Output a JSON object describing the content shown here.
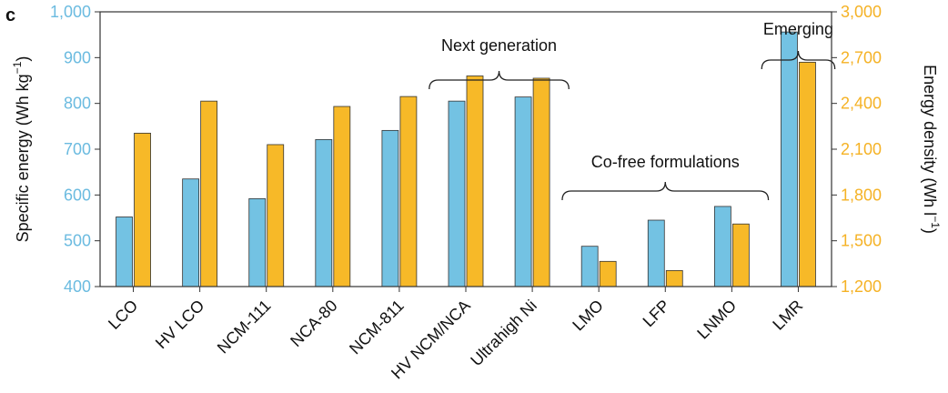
{
  "panel_label": "c",
  "chart_data": {
    "type": "bar",
    "categories": [
      "LCO",
      "HV LCO",
      "NCM-111",
      "NCA-80",
      "NCM-811",
      "HV NCM/NCA",
      "Ultrahigh Ni",
      "LMO",
      "LFP",
      "LNMO",
      "LMR"
    ],
    "series": [
      {
        "color": "#73c2e3",
        "axis": "left",
        "values": [
          552,
          635,
          592,
          721,
          741,
          805,
          814,
          488,
          545,
          575,
          956
        ]
      },
      {
        "color": "#f7b928",
        "axis": "right",
        "values": [
          2205,
          2415,
          2130,
          2380,
          2445,
          2580,
          2565,
          1365,
          1305,
          1610,
          2670
        ]
      }
    ],
    "ylabel_left_parts": [
      "Specific energy (Wh kg",
      "−1",
      ")"
    ],
    "ylabel_right_parts": [
      "Energy density (Wh l",
      "−1",
      ")"
    ],
    "ylim_left": [
      400,
      1000
    ],
    "ylim_right": [
      1200,
      3000
    ],
    "yticks_left": [
      "400",
      "500",
      "600",
      "700",
      "800",
      "900",
      "1,000"
    ],
    "yticks_right": [
      "1,200",
      "1,500",
      "1,800",
      "2,100",
      "2,400",
      "2,700",
      "3,000"
    ],
    "annotations": [
      {
        "text": "Next generation",
        "from": 5,
        "to": 6
      },
      {
        "text": "Co-free formulations",
        "from": 7,
        "to": 9
      },
      {
        "text": "Emerging",
        "from": 10,
        "to": 10
      }
    ]
  }
}
